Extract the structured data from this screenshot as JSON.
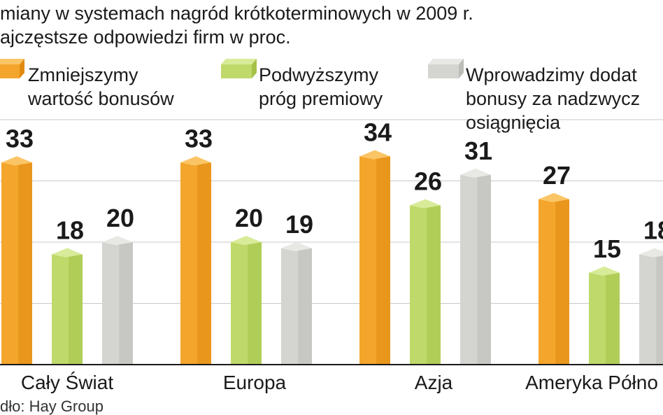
{
  "chart_data": {
    "type": "bar",
    "title": "miany w systemach nagród krótkoterminowych w 2009 r.",
    "subtitle": "ajczęstsze odpowiedzi firm w proc.",
    "categories": [
      "Cały Świat",
      "Europa",
      "Azja",
      "Ameryka Półno"
    ],
    "series": [
      {
        "name": "Zmniejszymy wartość bonusów",
        "legend_lines": [
          "Zmniejszymy",
          "wartość bonusów"
        ],
        "values": [
          33,
          33,
          34,
          27
        ]
      },
      {
        "name": "Podwyższymy próg premiowy",
        "legend_lines": [
          "Podwyższymy",
          "próg premiowy"
        ],
        "values": [
          18,
          20,
          26,
          15
        ]
      },
      {
        "name": "Wprowadzimy dodat bonusy za nadzwycz osiągnięcia",
        "legend_lines": [
          "Wprowadzimy dodat",
          "bonusy za nadzwycz",
          "osiągnięcia"
        ],
        "values": [
          20,
          19,
          31,
          18
        ]
      }
    ],
    "value_labels": [
      [
        "33",
        "33",
        "34",
        "27"
      ],
      [
        "18",
        "20",
        "26",
        "15"
      ],
      [
        "20",
        "19",
        "31",
        "18"
      ]
    ],
    "ylim": [
      0,
      40
    ],
    "grid": true,
    "legend_position": "top",
    "source": "dło: Hay Group",
    "colors": {
      "orange_front": "#f4a52c",
      "orange_side": "#e08a12",
      "orange_top": "#fbc566",
      "green_front": "#bfd96a",
      "green_side": "#a4c248",
      "green_top": "#d8eb99",
      "gray_front": "#d4d4d0",
      "gray_side": "#bcbcb8",
      "gray_top": "#e8e8e5"
    }
  }
}
